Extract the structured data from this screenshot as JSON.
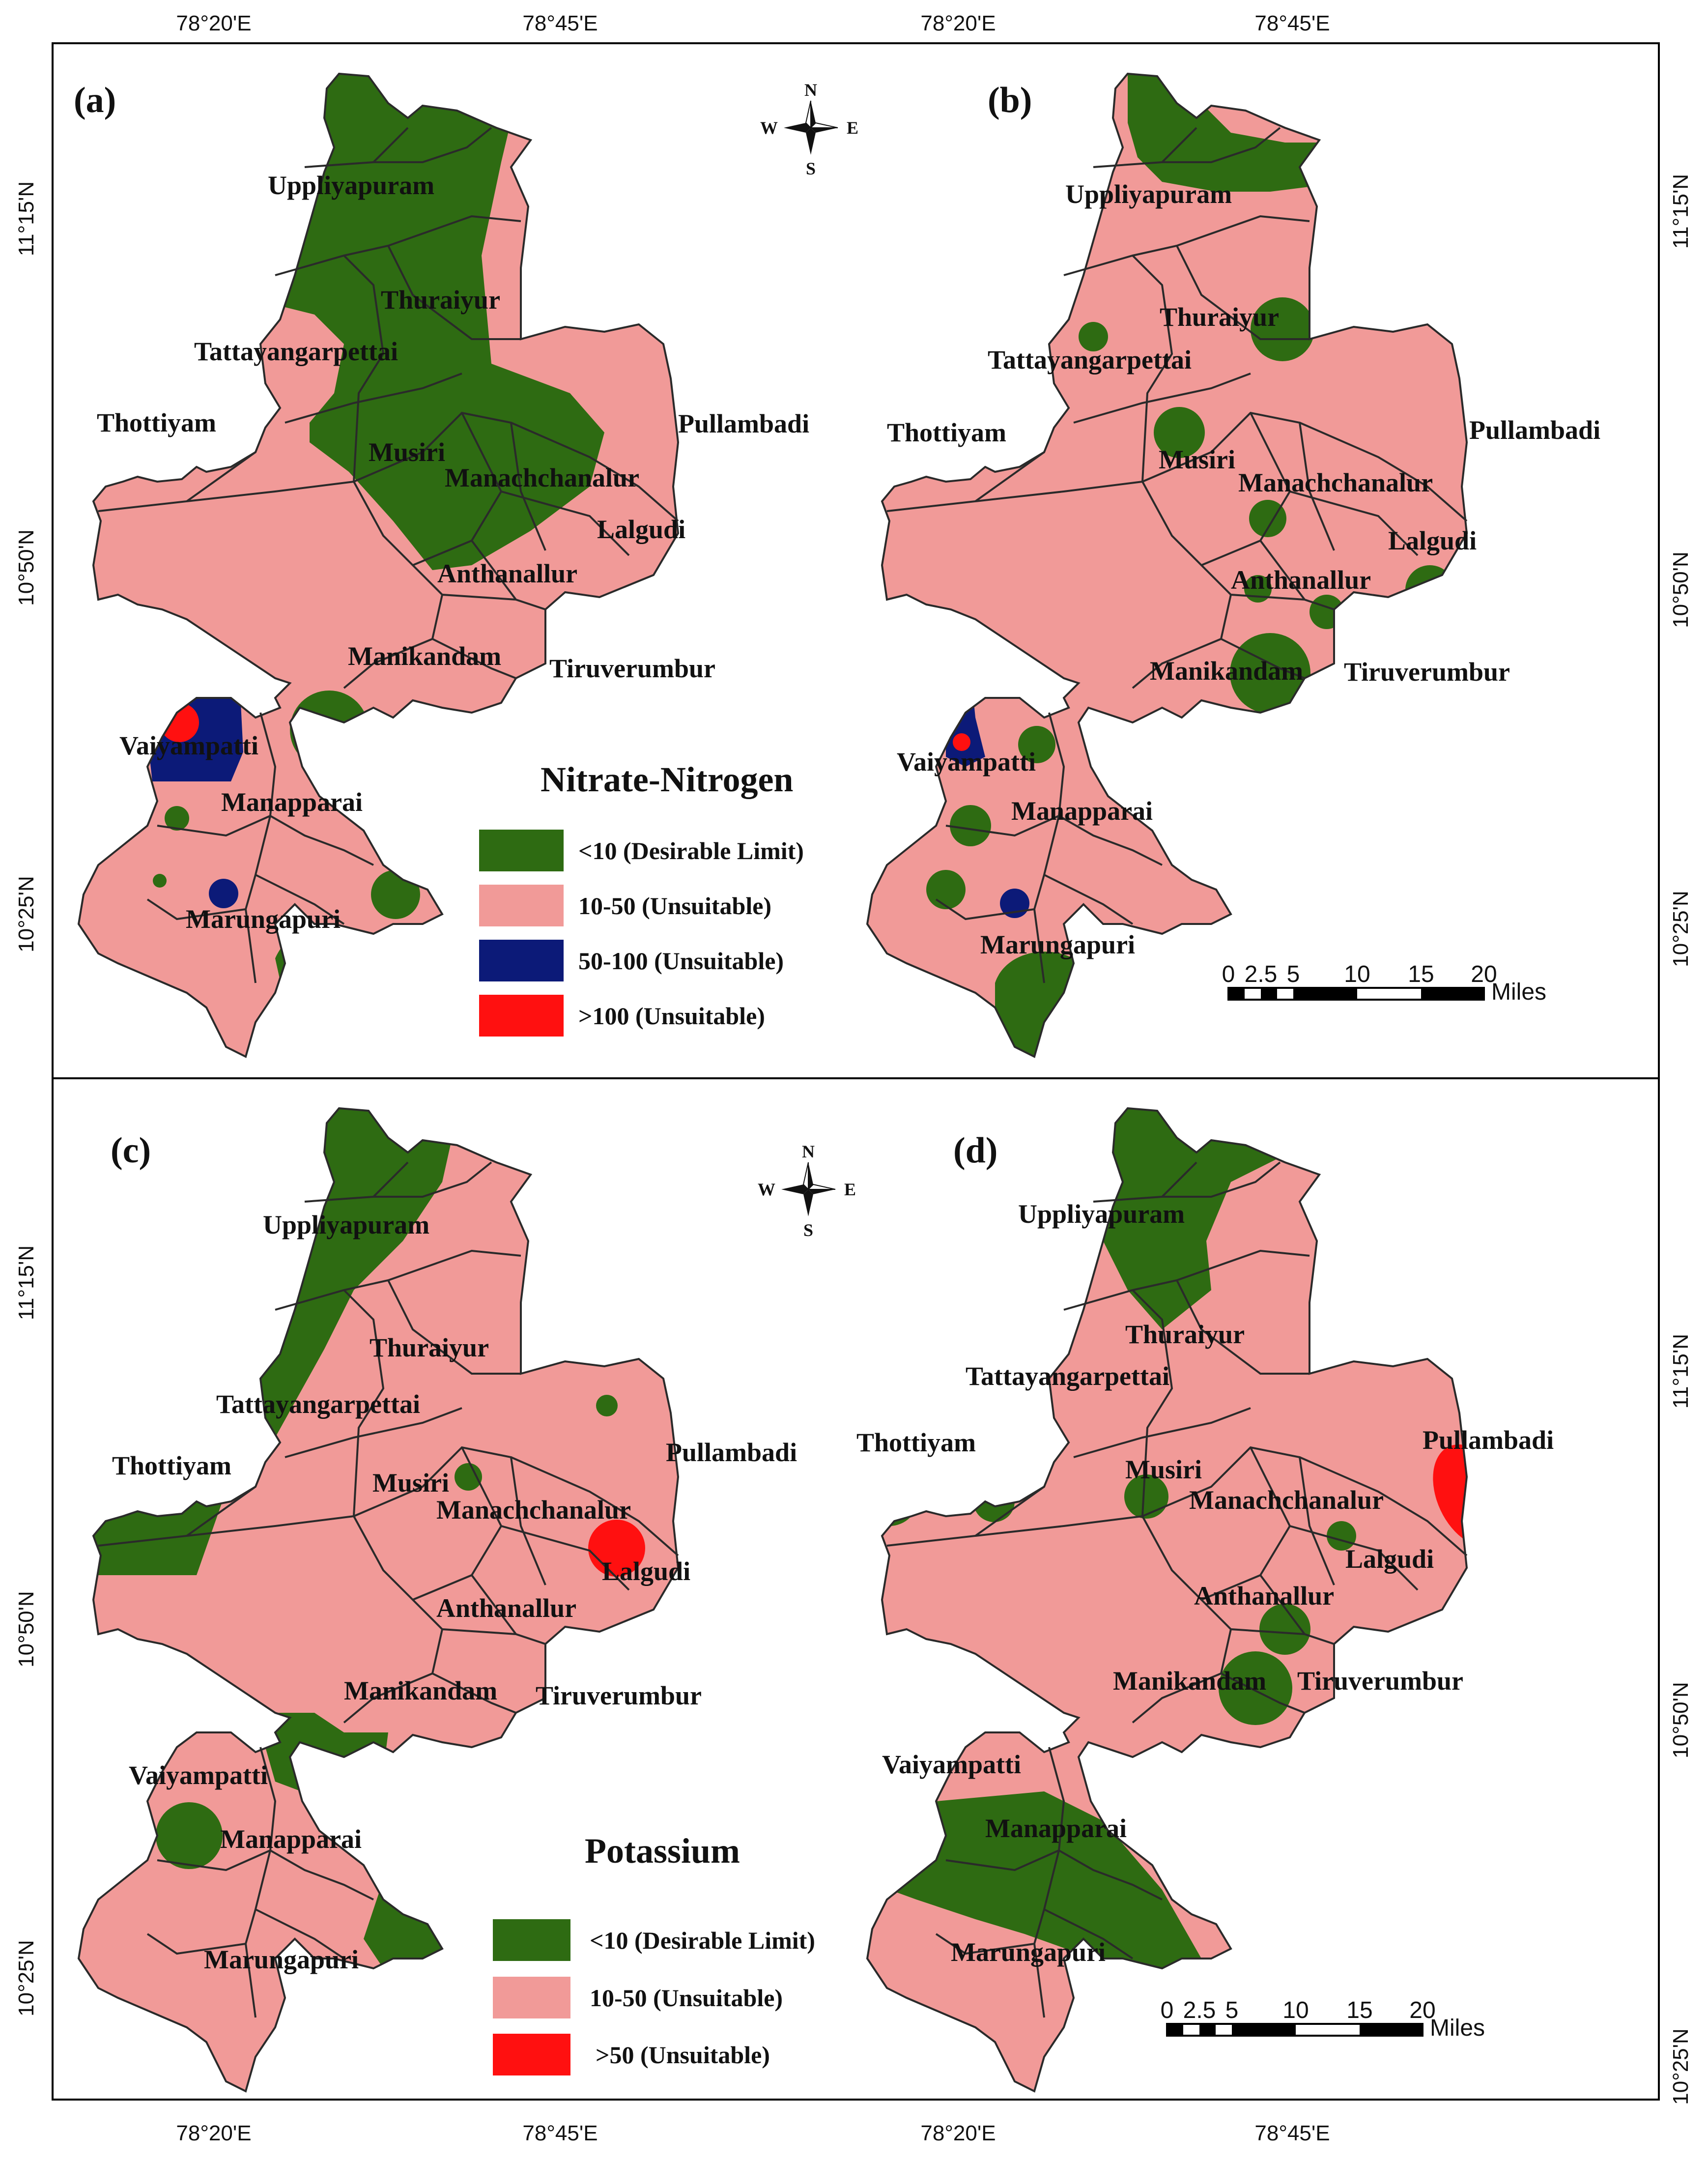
{
  "colors": {
    "desirable": "#2e6b12",
    "unsuitable_10_50": "#f19a98",
    "unsuitable_50_100": "#0c1a78",
    "unsuitable_high": "#ff1010",
    "boundary": "#2a2a2a",
    "frame": "#000000"
  },
  "coords": {
    "top": [
      "78°20'E",
      "78°45'E",
      "78°20'E",
      "78°45'E"
    ],
    "bottom": [
      "78°20'E",
      "78°45'E",
      "78°20'E",
      "78°45'E"
    ],
    "left": [
      "11°15'N",
      "10°50'N",
      "10°25'N",
      "11°15'N",
      "10°50'N",
      "10°25'N"
    ],
    "right": [
      "11°15'N",
      "10°50'N",
      "10°25'N",
      "11°15'N",
      "10°50'N",
      "10°25'N"
    ]
  },
  "compass": {
    "n": "N",
    "s": "S",
    "e": "E",
    "w": "W"
  },
  "panels": [
    {
      "id": "(a)",
      "places": [
        "Uppliyapuram",
        "Thuraiyur",
        "Tattayangarpettai",
        "Thottiyam",
        "Musiri",
        "Pullambadi",
        "Manachchanalur",
        "Lalgudi",
        "Anthanallur",
        "Manikandam",
        "Tiruverumbur",
        "Vaiyampatti",
        "Manapparai",
        "Marungapuri"
      ]
    },
    {
      "id": "(b)",
      "places": [
        "Uppliyapuram",
        "Thuraiyur",
        "Tattayangarpettai",
        "Thottiyam",
        "Musiri",
        "Pullambadi",
        "Manachchanalur",
        "Lalgudi",
        "Anthanallur",
        "Manikandam",
        "Tiruverumbur",
        "Vaiyampatti",
        "Manapparai",
        "Marungapuri"
      ]
    },
    {
      "id": "(c)",
      "places": [
        "Uppliyapuram",
        "Thuraiyur",
        "Tattayangarpettai",
        "Thottiyam",
        "Musiri",
        "Pullambadi",
        "Manachchanalur",
        "Lalgudi",
        "Anthanallur",
        "Manikandam",
        "Tiruverumbur",
        "Vaiyampatti",
        "Manapparai",
        "Marungapuri"
      ]
    },
    {
      "id": "(d)",
      "places": [
        "Uppliyapuram",
        "Thuraiyur",
        "Tattayangarpettai",
        "Thottiyam",
        "Musiri",
        "Pullambadi",
        "Manachchanalur",
        "Lalgudi",
        "Anthanallur",
        "Manikandam",
        "Tiruverumbur",
        "Vaiyampatti",
        "Manapparai",
        "Marungapuri"
      ]
    }
  ],
  "legend_top": {
    "title": "Nitrate-Nitrogen",
    "items": [
      "<10 (Desirable Limit)",
      "10-50 (Unsuitable)",
      "50-100 (Unsuitable)",
      ">100 (Unsuitable)"
    ]
  },
  "legend_bottom": {
    "title": "Potassium",
    "items": [
      "<10  (Desirable Limit)",
      "10-50  (Unsuitable)",
      ">50 (Unsuitable)"
    ]
  },
  "scalebar": {
    "ticks": [
      "0",
      "2.5",
      "5",
      "10",
      "15",
      "20"
    ],
    "unit": "Miles"
  }
}
